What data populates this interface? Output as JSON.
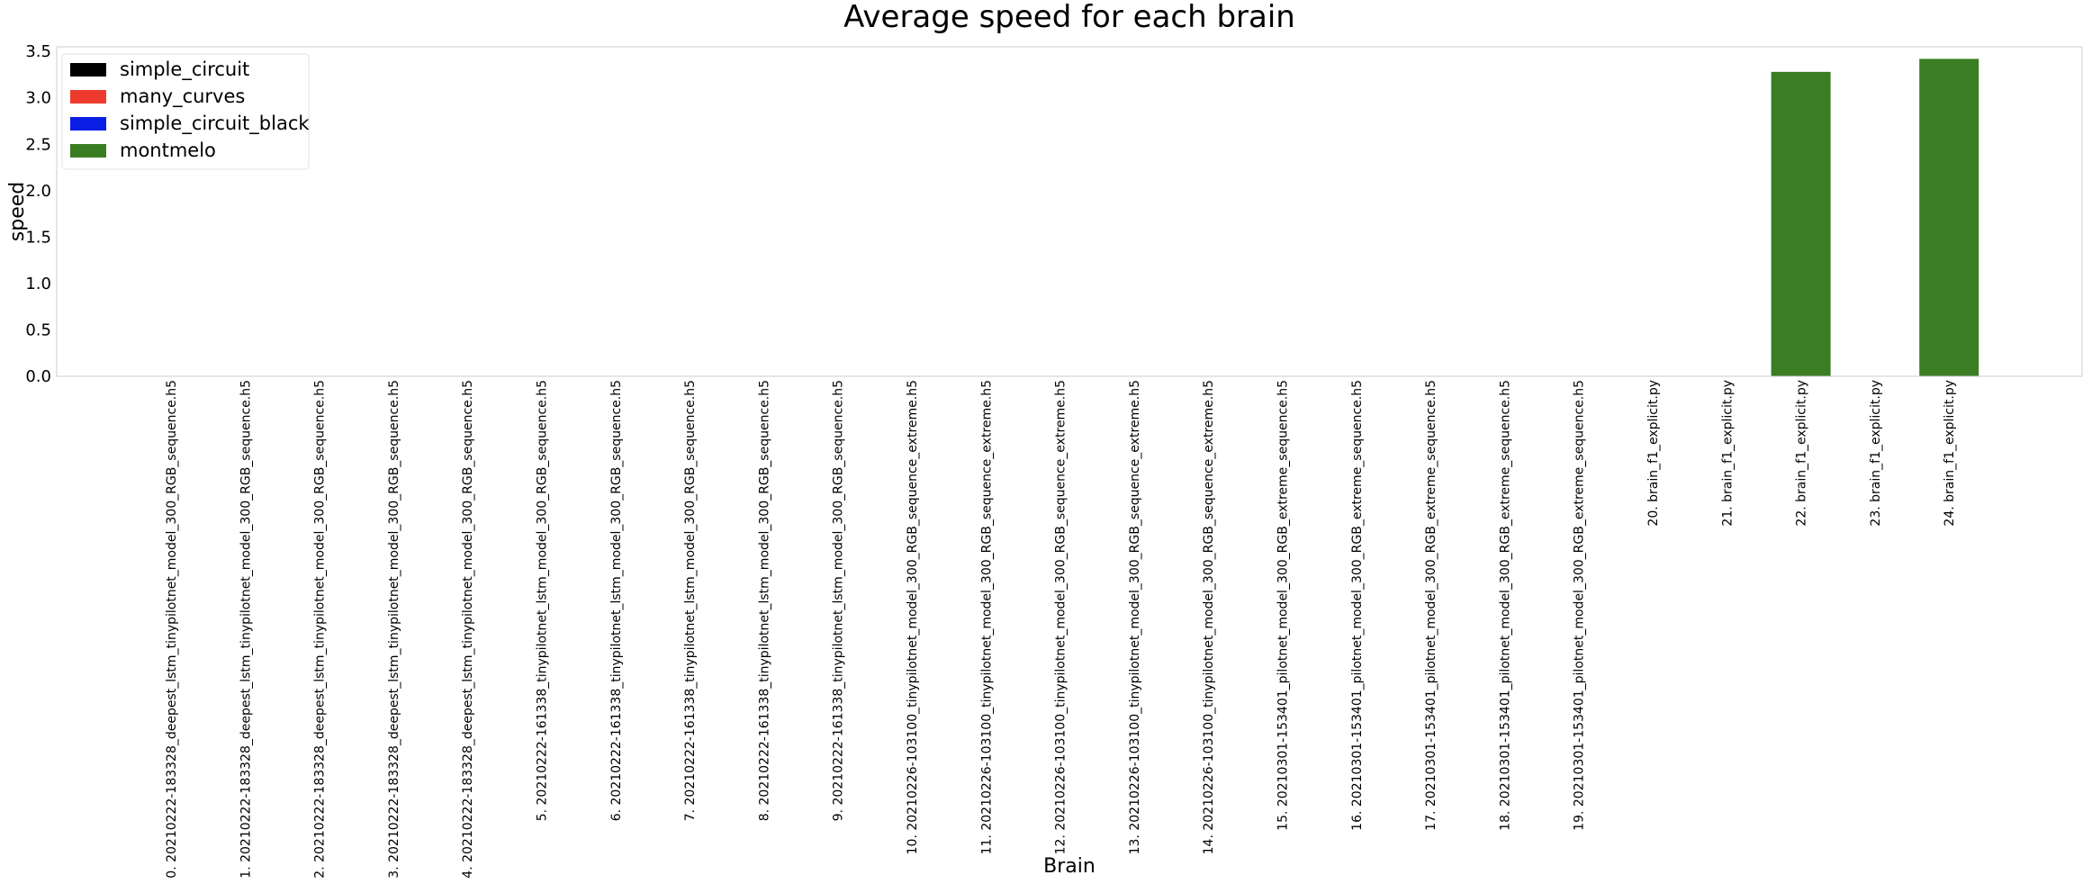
{
  "chart_data": {
    "type": "bar",
    "title": "Average speed for each brain",
    "xlabel": "Brain",
    "ylabel": "speed",
    "ylim": [
      0,
      3.55
    ],
    "yticks": [
      0.0,
      0.5,
      1.0,
      1.5,
      2.0,
      2.5,
      3.0,
      3.5
    ],
    "ytick_labels": [
      "0.0",
      "0.5",
      "1.0",
      "1.5",
      "2.0",
      "2.5",
      "3.0",
      "3.5"
    ],
    "grid": false,
    "legend_position": "top-left",
    "categories": [
      "0. 20210222-183328_deepest_lstm_tinypilotnet_model_300_RGB_sequence.h5",
      "1. 20210222-183328_deepest_lstm_tinypilotnet_model_300_RGB_sequence.h5",
      "2. 20210222-183328_deepest_lstm_tinypilotnet_model_300_RGB_sequence.h5",
      "3. 20210222-183328_deepest_lstm_tinypilotnet_model_300_RGB_sequence.h5",
      "4. 20210222-183328_deepest_lstm_tinypilotnet_model_300_RGB_sequence.h5",
      "5. 20210222-161338_tinypilotnet_lstm_model_300_RGB_sequence.h5",
      "6. 20210222-161338_tinypilotnet_lstm_model_300_RGB_sequence.h5",
      "7. 20210222-161338_tinypilotnet_lstm_model_300_RGB_sequence.h5",
      "8. 20210222-161338_tinypilotnet_lstm_model_300_RGB_sequence.h5",
      "9. 20210222-161338_tinypilotnet_lstm_model_300_RGB_sequence.h5",
      "10. 20210226-103100_tinypilotnet_model_300_RGB_sequence_extreme.h5",
      "11. 20210226-103100_tinypilotnet_model_300_RGB_sequence_extreme.h5",
      "12. 20210226-103100_tinypilotnet_model_300_RGB_sequence_extreme.h5",
      "13. 20210226-103100_tinypilotnet_model_300_RGB_sequence_extreme.h5",
      "14. 20210226-103100_tinypilotnet_model_300_RGB_sequence_extreme.h5",
      "15. 20210301-153401_pilotnet_model_300_RGB_extreme_sequence.h5",
      "16. 20210301-153401_pilotnet_model_300_RGB_extreme_sequence.h5",
      "17. 20210301-153401_pilotnet_model_300_RGB_extreme_sequence.h5",
      "18. 20210301-153401_pilotnet_model_300_RGB_extreme_sequence.h5",
      "19. 20210301-153401_pilotnet_model_300_RGB_extreme_sequence.h5",
      "20. brain_f1_explicit.py",
      "21. brain_f1_explicit.py",
      "22. brain_f1_explicit.py",
      "23. brain_f1_explicit.py",
      "24. brain_f1_explicit.py"
    ],
    "values": [
      0,
      0,
      0,
      0,
      0,
      0,
      0,
      0,
      0,
      0,
      0,
      0,
      0,
      0,
      0,
      0,
      0,
      0,
      0,
      0,
      0,
      0,
      3.28,
      0,
      3.42
    ],
    "bar_series": [
      0,
      1,
      2,
      3,
      0,
      1,
      2,
      3,
      0,
      1,
      2,
      3,
      0,
      1,
      2,
      3,
      0,
      1,
      2,
      3,
      0,
      1,
      3,
      3,
      3
    ],
    "series": [
      {
        "name": "simple_circuit",
        "color": "#000000"
      },
      {
        "name": "many_curves",
        "color": "#ee3a2c"
      },
      {
        "name": "simple_circuit_black",
        "color": "#0a1ee6"
      },
      {
        "name": "montmelo",
        "color": "#3a7d22"
      }
    ]
  }
}
